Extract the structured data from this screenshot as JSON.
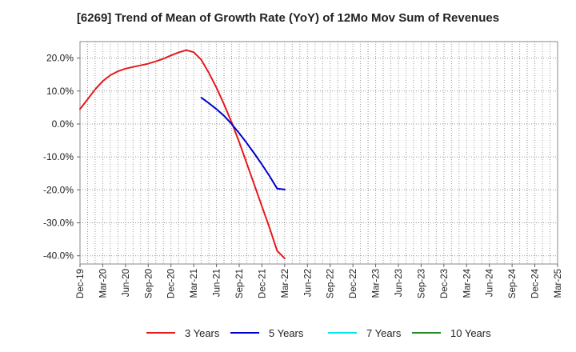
{
  "chart_data": {
    "type": "line",
    "title": "[6269]  Trend of Mean of Growth Rate (YoY) of 12Mo Mov Sum of Revenues",
    "xlabel": "",
    "ylabel": "",
    "ylim": [
      -42.5,
      25
    ],
    "yticks": [
      20,
      10,
      0,
      -10,
      -20,
      -30,
      -40
    ],
    "ytick_labels": [
      "20.0%",
      "10.0%",
      "0.0%",
      "-10.0%",
      "-20.0%",
      "-30.0%",
      "-40.0%"
    ],
    "x_tick_labels": [
      "Dec-19",
      "Mar-20",
      "Jun-20",
      "Sep-20",
      "Dec-20",
      "Mar-21",
      "Jun-21",
      "Sep-21",
      "Dec-21",
      "Mar-22",
      "Jun-22",
      "Sep-22",
      "Dec-22",
      "Mar-23",
      "Jun-23",
      "Sep-23",
      "Dec-23",
      "Mar-24",
      "Jun-24",
      "Sep-24",
      "Dec-24",
      "Mar-25"
    ],
    "grid": true,
    "legend_position": "bottom",
    "series": [
      {
        "name": "3 Years",
        "color": "#e31a1c",
        "points": [
          [
            0,
            4.5
          ],
          [
            1,
            7.5
          ],
          [
            2,
            10.5
          ],
          [
            3,
            13
          ],
          [
            4,
            14.8
          ],
          [
            5,
            16
          ],
          [
            6,
            16.8
          ],
          [
            7,
            17.3
          ],
          [
            8,
            17.8
          ],
          [
            9,
            18.3
          ],
          [
            10,
            19
          ],
          [
            11,
            19.8
          ],
          [
            12,
            20.8
          ],
          [
            13,
            21.7
          ],
          [
            14,
            22.4
          ],
          [
            15,
            21.8
          ],
          [
            16,
            19.5
          ],
          [
            17,
            15.5
          ],
          [
            18,
            11
          ],
          [
            19,
            6
          ],
          [
            20,
            0.5
          ],
          [
            21,
            -5.5
          ],
          [
            22,
            -12
          ],
          [
            23,
            -18.5
          ],
          [
            24,
            -25
          ],
          [
            25,
            -31.5
          ],
          [
            26,
            -38.5
          ],
          [
            27,
            -40.8
          ]
        ]
      },
      {
        "name": "5 Years",
        "color": "#0000cc",
        "points": [
          [
            16,
            8
          ],
          [
            17,
            6.3
          ],
          [
            18,
            4.5
          ],
          [
            19,
            2.5
          ],
          [
            20,
            0
          ],
          [
            21,
            -2.8
          ],
          [
            22,
            -5.8
          ],
          [
            23,
            -9
          ],
          [
            24,
            -12.3
          ],
          [
            25,
            -15.8
          ],
          [
            26,
            -19.6
          ],
          [
            27,
            -19.9
          ]
        ]
      },
      {
        "name": "7 Years",
        "color": "#00e5ee",
        "points": []
      },
      {
        "name": "10 Years",
        "color": "#228b22",
        "points": []
      }
    ]
  }
}
